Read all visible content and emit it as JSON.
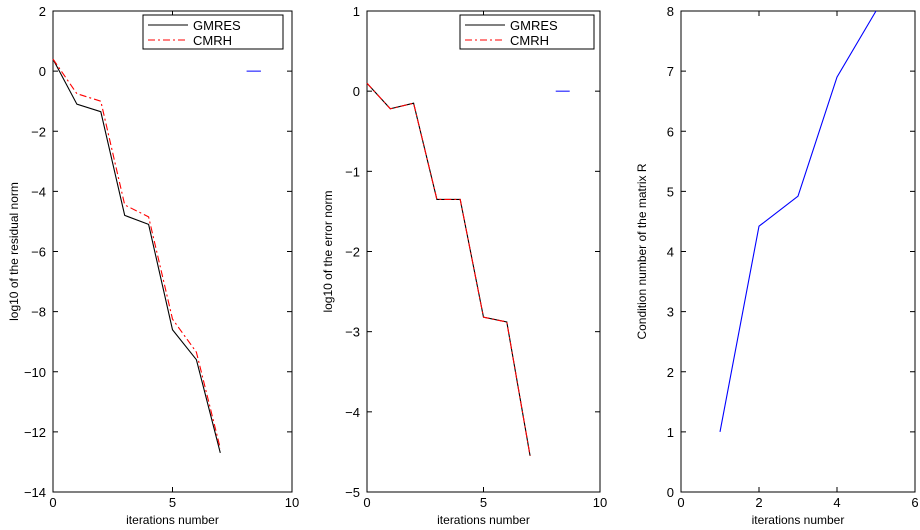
{
  "chart_data": [
    {
      "type": "line",
      "xlabel": "iterations number",
      "ylabel": "log10 of the residual norm",
      "xlim": [
        0,
        10
      ],
      "ylim": [
        -14,
        2
      ],
      "xticks": [
        0,
        5,
        10
      ],
      "yticks": [
        -14,
        -12,
        -10,
        -8,
        -6,
        -4,
        -2,
        0,
        2
      ],
      "grid": false,
      "legend_position": "top-right",
      "series": [
        {
          "name": "GMRES",
          "color": "#000000",
          "dash": "solid",
          "x": [
            0,
            1,
            2,
            3,
            4,
            5,
            6,
            7
          ],
          "y": [
            0.4,
            -1.1,
            -1.35,
            -4.8,
            -5.1,
            -8.6,
            -9.6,
            -12.7
          ]
        },
        {
          "name": "CMRH",
          "color": "#ff0000",
          "dash": "dashdot",
          "x": [
            0,
            1,
            2,
            3,
            4,
            5,
            6,
            7
          ],
          "y": [
            0.4,
            -0.75,
            -1.0,
            -4.45,
            -4.85,
            -8.25,
            -9.35,
            -12.55
          ]
        }
      ],
      "stray_marks": [
        {
          "color": "#0000ff",
          "x": [
            8.1,
            8.7
          ],
          "y": [
            0,
            0
          ]
        }
      ]
    },
    {
      "type": "line",
      "xlabel": "iterations number",
      "ylabel": "log10 of the error norm",
      "xlim": [
        0,
        10
      ],
      "ylim": [
        -5,
        1
      ],
      "xticks": [
        0,
        5,
        10
      ],
      "yticks": [
        -5,
        -4,
        -3,
        -2,
        -1,
        0,
        1
      ],
      "grid": false,
      "legend_position": "top-right",
      "series": [
        {
          "name": "GMRES",
          "color": "#000000",
          "dash": "solid",
          "x": [
            0,
            1,
            2,
            3,
            4,
            5,
            6,
            7
          ],
          "y": [
            0.1,
            -0.22,
            -0.15,
            -1.35,
            -1.35,
            -2.82,
            -2.88,
            -4.55
          ]
        },
        {
          "name": "CMRH",
          "color": "#ff0000",
          "dash": "dashdot",
          "x": [
            0,
            1,
            2,
            3,
            4,
            5,
            6,
            7
          ],
          "y": [
            0.1,
            -0.22,
            -0.15,
            -1.35,
            -1.35,
            -2.82,
            -2.88,
            -4.55
          ]
        }
      ],
      "stray_marks": [
        {
          "color": "#0000ff",
          "x": [
            8.1,
            8.7
          ],
          "y": [
            0,
            0
          ]
        }
      ]
    },
    {
      "type": "line",
      "xlabel": "iterations number",
      "ylabel": "Condition number of the matrix R",
      "xlim": [
        0,
        6
      ],
      "ylim": [
        0,
        8
      ],
      "xticks": [
        0,
        2,
        4,
        6
      ],
      "yticks": [
        0,
        1,
        2,
        3,
        4,
        5,
        6,
        7,
        8
      ],
      "grid": false,
      "series": [
        {
          "color": "#0000ff",
          "dash": "solid",
          "x": [
            1,
            2,
            3,
            4,
            5
          ],
          "y": [
            1.0,
            4.42,
            4.92,
            6.9,
            8.0
          ]
        }
      ]
    }
  ]
}
